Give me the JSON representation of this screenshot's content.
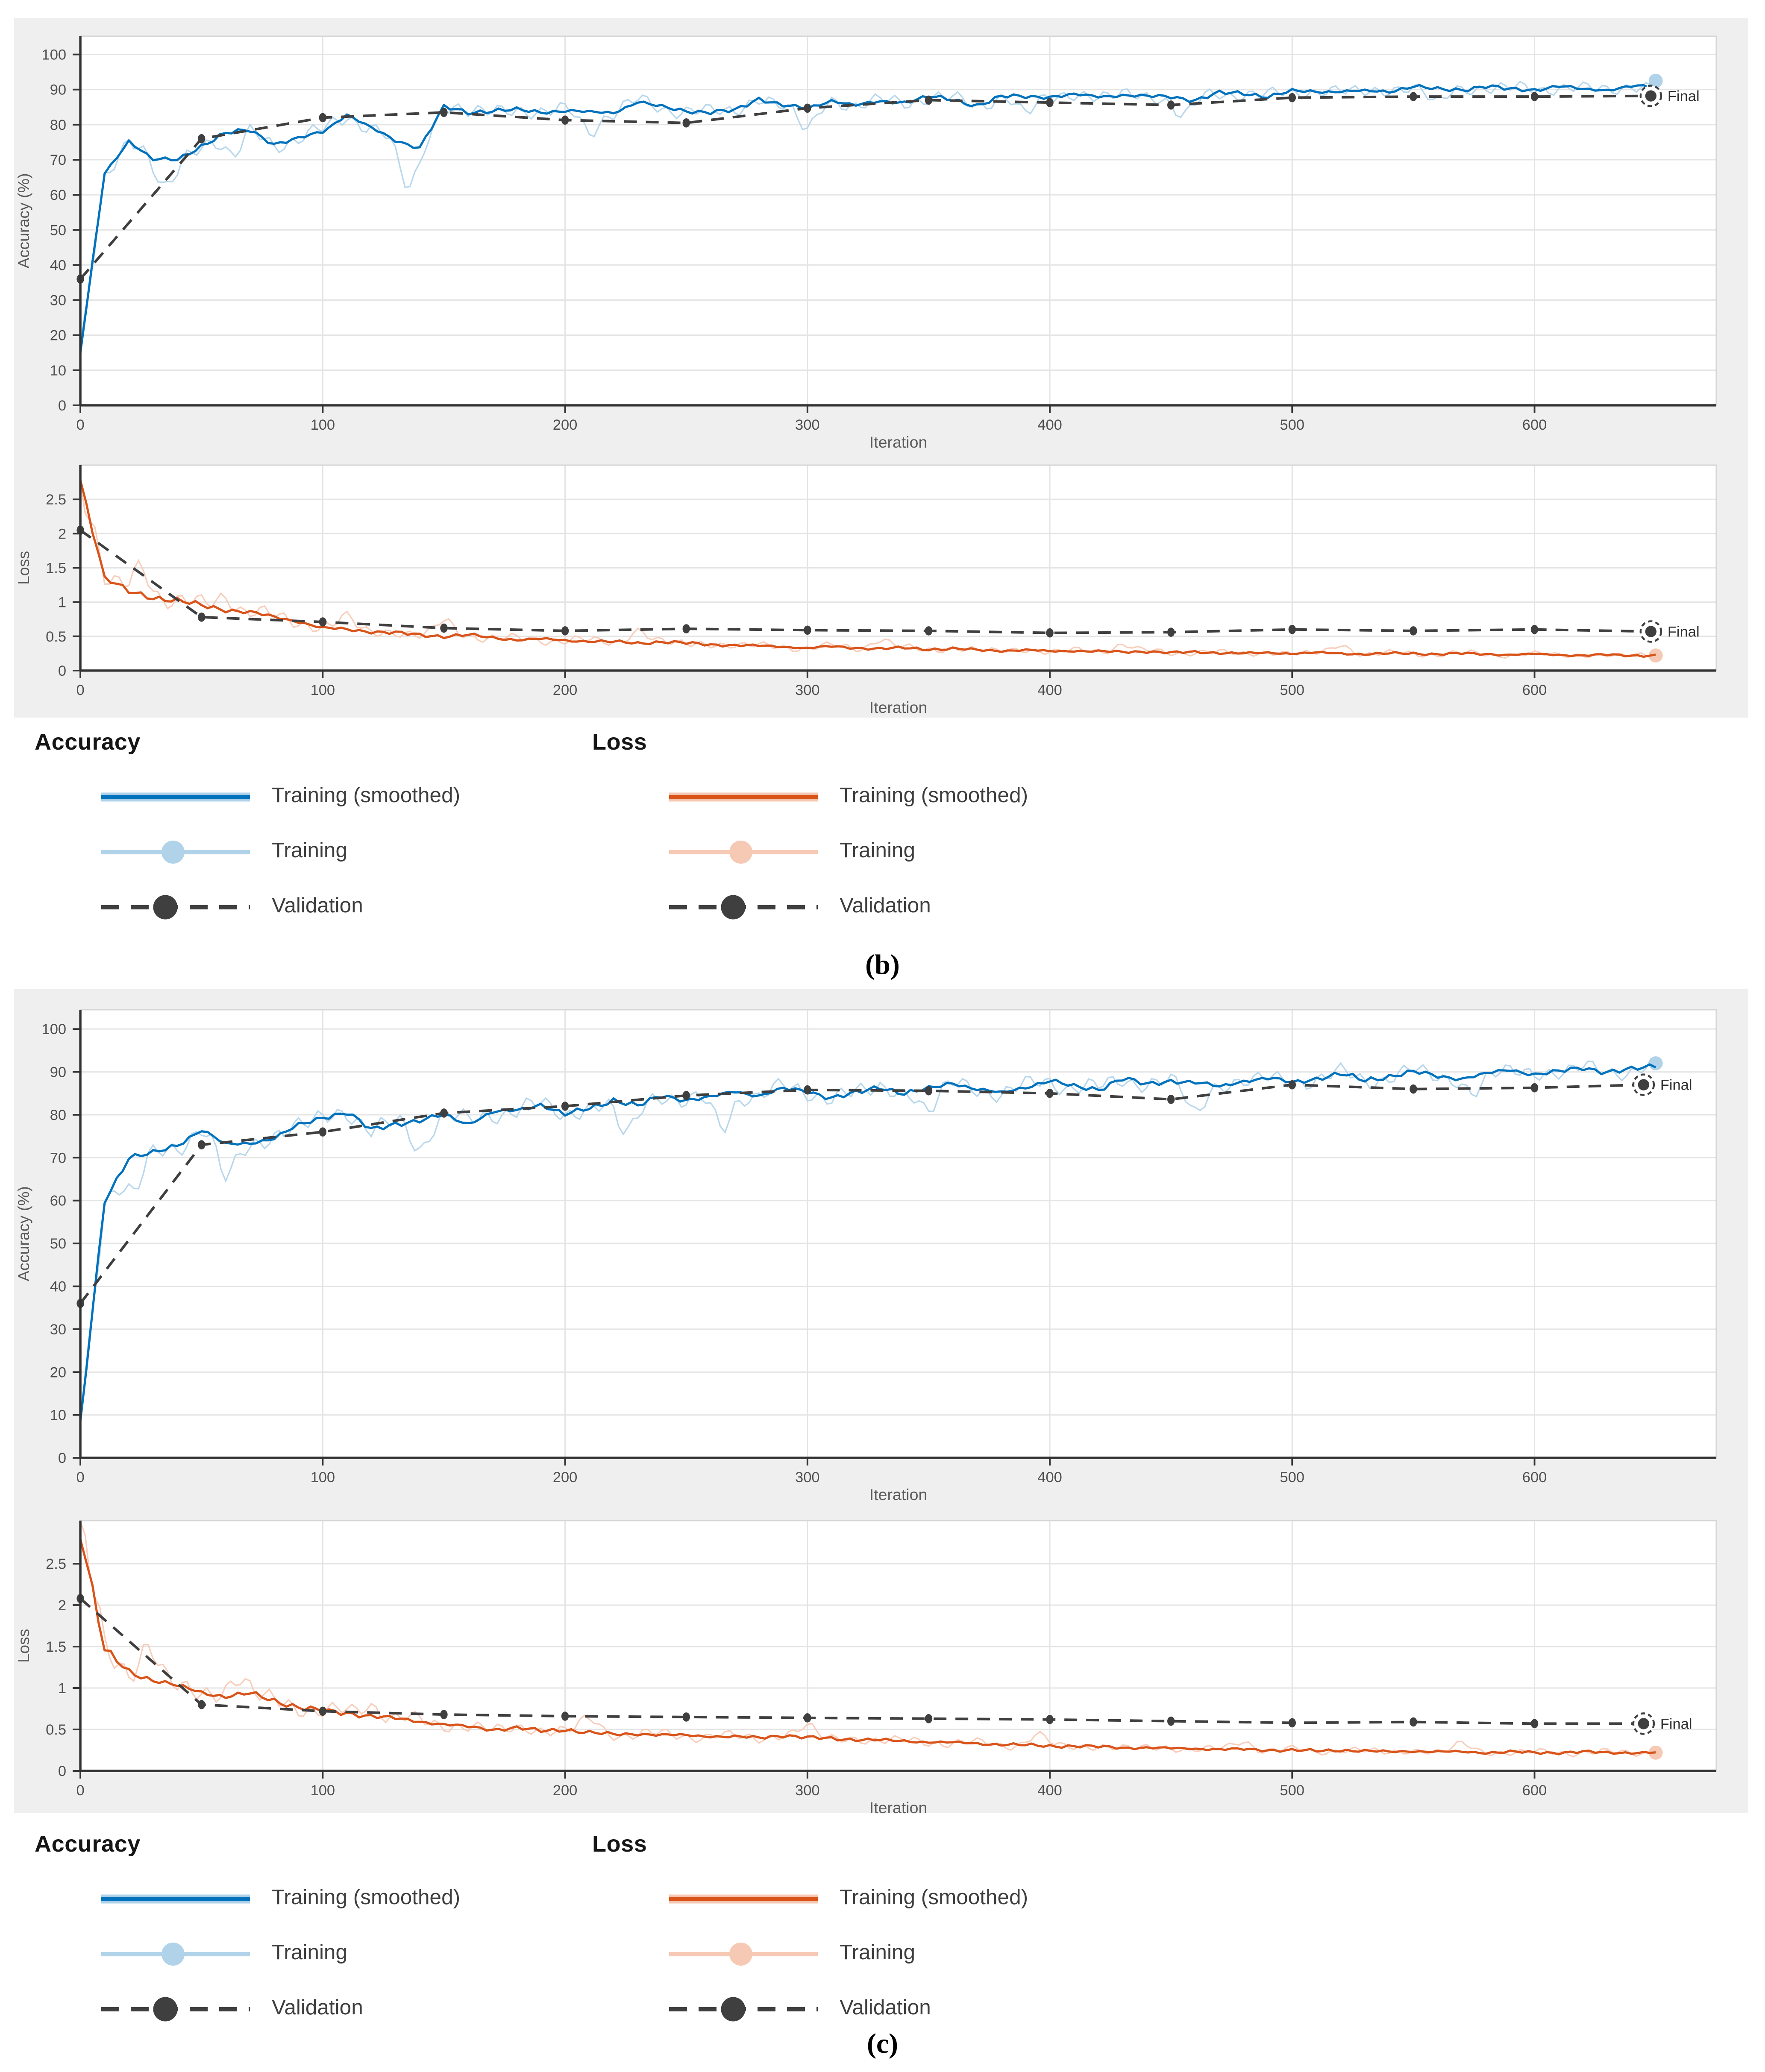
{
  "figure": {
    "background": "#ffffff",
    "panel_background": "#efefef",
    "final_label": "Final",
    "xlabel": "Iteration",
    "accuracy_ylabel": "Accuracy (%)",
    "loss_ylabel": "Loss"
  },
  "panels": [
    {
      "caption": "(b)",
      "legend": {
        "columns": [
          {
            "title": "Accuracy",
            "items": [
              {
                "label": "Training (smoothed)",
                "type": "smoothed",
                "color": "#0072bd",
                "halo": "#b0d3ea"
              },
              {
                "label": "Training",
                "type": "raw",
                "color": "#b0d3ea"
              },
              {
                "label": "Validation",
                "type": "validation",
                "color": "#3f3f3f"
              }
            ]
          },
          {
            "title": "Loss",
            "items": [
              {
                "label": "Training (smoothed)",
                "type": "smoothed",
                "color": "#d95319",
                "halo": "#f6c9b5"
              },
              {
                "label": "Training",
                "type": "raw",
                "color": "#f6c9b5"
              },
              {
                "label": "Validation",
                "type": "validation",
                "color": "#3f3f3f"
              }
            ]
          }
        ]
      }
    },
    {
      "caption": "(c)",
      "legend": {
        "columns": [
          {
            "title": "Accuracy",
            "items": [
              {
                "label": "Training (smoothed)",
                "type": "smoothed",
                "color": "#0072bd",
                "halo": "#b0d3ea"
              },
              {
                "label": "Training",
                "type": "raw",
                "color": "#b0d3ea"
              },
              {
                "label": "Validation",
                "type": "validation",
                "color": "#3f3f3f"
              }
            ]
          },
          {
            "title": "Loss",
            "items": [
              {
                "label": "Training (smoothed)",
                "type": "smoothed",
                "color": "#d95319",
                "halo": "#f6c9b5"
              },
              {
                "label": "Training",
                "type": "raw",
                "color": "#f6c9b5"
              },
              {
                "label": "Validation",
                "type": "validation",
                "color": "#3f3f3f"
              }
            ]
          }
        ]
      }
    }
  ],
  "chart_data": [
    {
      "panel": "b",
      "metric": "accuracy",
      "type": "line",
      "xlabel": "Iteration",
      "ylabel": "Accuracy (%)",
      "xlim": [
        0,
        675
      ],
      "ylim": [
        0,
        105.2
      ],
      "xticks": [
        0,
        100,
        200,
        300,
        400,
        500,
        600
      ],
      "yticks": [
        0,
        10,
        20,
        30,
        40,
        50,
        60,
        70,
        80,
        90,
        100
      ],
      "grid": true,
      "colors": {
        "smoothed": "#0072bd",
        "raw": "#b0d3ea",
        "validation": "#3f3f3f"
      },
      "series": {
        "smoothed": {
          "x_step": 10,
          "values": [
            15,
            66,
            75.5,
            70,
            70,
            74,
            77.5,
            78.5,
            74.5,
            76,
            78,
            83,
            79,
            75.5,
            73.5,
            85,
            83.5,
            84,
            84.2,
            83.6,
            84,
            83.5,
            83.5,
            86.5,
            85,
            84,
            83.5,
            84,
            87.5,
            85.5,
            84.5,
            87,
            85.5,
            86.5,
            86.5,
            88,
            87,
            85.5,
            88,
            88,
            88,
            88.5,
            88,
            88.5,
            88,
            88,
            87,
            89,
            89,
            88,
            89.5,
            89.5,
            89.5,
            89.5,
            89.5,
            91,
            90,
            90,
            91,
            90,
            90,
            91,
            90,
            90,
            91,
            90.5
          ]
        },
        "raw": {
          "derived_from": "smoothed",
          "amp": {
            "base": 3.2,
            "x_slope": -0.0012,
            "value_factor": 0
          },
          "dips": [
            [
              35,
              -8
            ],
            [
              63,
              -7
            ],
            [
              135,
              -12
            ],
            [
              210,
              -5
            ],
            [
              300,
              -6
            ],
            [
              390,
              -5
            ],
            [
              455,
              -5
            ],
            [
              560,
              -4
            ]
          ]
        },
        "validation": {
          "x": [
            0,
            50,
            100,
            150,
            200,
            250,
            300,
            350,
            400,
            450,
            500,
            550,
            600,
            648
          ],
          "y": [
            36,
            76,
            82,
            83.5,
            81.3,
            80.5,
            84.7,
            87,
            86.3,
            85.6,
            87.7,
            88,
            88,
            88.2
          ]
        },
        "final": {
          "x": 648,
          "y": 88.2,
          "label": "Final"
        },
        "raw_end_marker": {
          "x": 650,
          "y": 92.5
        }
      }
    },
    {
      "panel": "b",
      "metric": "loss",
      "type": "line",
      "xlabel": "Iteration",
      "ylabel": "Loss",
      "xlim": [
        0,
        675
      ],
      "ylim": [
        0,
        3.0
      ],
      "xticks": [
        0,
        100,
        200,
        300,
        400,
        500,
        600
      ],
      "yticks": [
        0,
        0.5,
        1,
        1.5,
        2,
        2.5
      ],
      "grid": true,
      "colors": {
        "smoothed": "#d95319",
        "raw": "#f6c9b5",
        "validation": "#3f3f3f"
      },
      "series": {
        "smoothed": {
          "x_step": 10,
          "values": [
            2.8,
            1.35,
            1.15,
            1.07,
            1.02,
            0.95,
            0.89,
            0.85,
            0.78,
            0.72,
            0.62,
            0.6,
            0.57,
            0.55,
            0.52,
            0.5,
            0.52,
            0.48,
            0.45,
            0.46,
            0.44,
            0.43,
            0.42,
            0.4,
            0.42,
            0.4,
            0.38,
            0.37,
            0.36,
            0.35,
            0.33,
            0.35,
            0.33,
            0.32,
            0.33,
            0.31,
            0.32,
            0.3,
            0.29,
            0.3,
            0.28,
            0.29,
            0.28,
            0.27,
            0.28,
            0.26,
            0.27,
            0.26,
            0.25,
            0.26,
            0.25,
            0.26,
            0.25,
            0.24,
            0.25,
            0.25,
            0.24,
            0.25,
            0.24,
            0.23,
            0.24,
            0.23,
            0.22,
            0.23,
            0.22,
            0.22
          ]
        },
        "raw": {
          "derived_from": "smoothed",
          "amp": {
            "base": 0.02,
            "x_slope": 0,
            "value_factor": 0.16
          },
          "dips": [
            [
              25,
              0.4
            ],
            [
              60,
              0.22
            ],
            [
              110,
              0.18
            ],
            [
              150,
              0.22
            ],
            [
              230,
              0.18
            ],
            [
              330,
              0.14
            ],
            [
              430,
              0.12
            ],
            [
              520,
              0.12
            ]
          ]
        },
        "validation": {
          "x": [
            0,
            50,
            100,
            150,
            200,
            250,
            300,
            350,
            400,
            450,
            500,
            550,
            600,
            648
          ],
          "y": [
            2.05,
            0.78,
            0.71,
            0.62,
            0.58,
            0.61,
            0.59,
            0.58,
            0.55,
            0.56,
            0.6,
            0.58,
            0.6,
            0.57
          ]
        },
        "final": {
          "x": 648,
          "y": 0.57,
          "label": "Final"
        },
        "raw_end_marker": {
          "x": 650,
          "y": 0.22
        }
      }
    },
    {
      "panel": "c",
      "metric": "accuracy",
      "type": "line",
      "xlabel": "Iteration",
      "ylabel": "Accuracy (%)",
      "xlim": [
        0,
        675
      ],
      "ylim": [
        0,
        104.5
      ],
      "xticks": [
        0,
        100,
        200,
        300,
        400,
        500,
        600
      ],
      "yticks": [
        0,
        10,
        20,
        30,
        40,
        50,
        60,
        70,
        80,
        90,
        100
      ],
      "grid": true,
      "colors": {
        "smoothed": "#0072bd",
        "raw": "#b0d3ea",
        "validation": "#3f3f3f"
      },
      "series": {
        "smoothed": {
          "x_step": 10,
          "values": [
            8,
            60,
            70,
            71,
            73,
            76.5,
            73,
            73.5,
            74.5,
            77.5,
            79.5,
            80.5,
            76.5,
            78,
            78.5,
            80,
            78,
            80.5,
            81,
            82.5,
            80,
            81.5,
            83.5,
            82,
            84.5,
            83.5,
            84,
            85.5,
            84.5,
            86,
            85.5,
            84,
            85,
            86.5,
            85,
            86,
            87.5,
            86,
            85,
            86.5,
            88,
            86.5,
            86,
            88.5,
            87,
            88,
            87.5,
            86.5,
            88,
            88.5,
            87.5,
            88.5,
            89.5,
            88,
            89,
            90,
            89,
            88.5,
            89.5,
            90.5,
            89.5,
            90,
            91,
            90,
            90.5,
            91.5
          ]
        },
        "raw": {
          "derived_from": "smoothed",
          "amp": {
            "base": 3.2,
            "x_slope": -0.0012,
            "value_factor": 0
          },
          "dips": [
            [
              22,
              -9
            ],
            [
              60,
              -8
            ],
            [
              140,
              -6
            ],
            [
              225,
              -7
            ],
            [
              265,
              -8
            ],
            [
              350,
              -5
            ],
            [
              460,
              -7
            ],
            [
              575,
              -4
            ]
          ]
        },
        "validation": {
          "x": [
            0,
            50,
            100,
            150,
            200,
            250,
            300,
            350,
            400,
            450,
            500,
            550,
            600,
            645
          ],
          "y": [
            36,
            73,
            76,
            80.4,
            82,
            84.5,
            85.8,
            85.6,
            85,
            83.6,
            87,
            86,
            86.3,
            87
          ]
        },
        "final": {
          "x": 645,
          "y": 87,
          "label": "Final"
        },
        "raw_end_marker": {
          "x": 650,
          "y": 92
        }
      }
    },
    {
      "panel": "c",
      "metric": "loss",
      "type": "line",
      "xlabel": "Iteration",
      "ylabel": "Loss",
      "xlim": [
        0,
        675
      ],
      "ylim": [
        0,
        3.02
      ],
      "xticks": [
        0,
        100,
        200,
        300,
        400,
        500,
        600
      ],
      "yticks": [
        0,
        0.5,
        1,
        1.5,
        2,
        2.5
      ],
      "grid": true,
      "colors": {
        "smoothed": "#d95319",
        "raw": "#f6c9b5",
        "validation": "#3f3f3f"
      },
      "series": {
        "smoothed": {
          "x_step": 10,
          "values": [
            2.9,
            1.45,
            1.2,
            1.1,
            1.02,
            0.95,
            0.9,
            0.93,
            0.85,
            0.77,
            0.72,
            0.7,
            0.66,
            0.63,
            0.6,
            0.56,
            0.53,
            0.5,
            0.52,
            0.48,
            0.5,
            0.46,
            0.44,
            0.45,
            0.43,
            0.43,
            0.42,
            0.41,
            0.4,
            0.43,
            0.4,
            0.39,
            0.38,
            0.37,
            0.36,
            0.35,
            0.34,
            0.33,
            0.32,
            0.31,
            0.3,
            0.3,
            0.29,
            0.28,
            0.28,
            0.27,
            0.27,
            0.26,
            0.26,
            0.25,
            0.25,
            0.24,
            0.25,
            0.24,
            0.23,
            0.24,
            0.23,
            0.23,
            0.22,
            0.23,
            0.22,
            0.22,
            0.23,
            0.22,
            0.22,
            0.22
          ]
        },
        "raw": {
          "derived_from": "smoothed",
          "amp": {
            "base": 0.02,
            "x_slope": 0,
            "value_factor": 0.16
          },
          "dips": [
            [
              28,
              0.38
            ],
            [
              65,
              0.2
            ],
            [
              120,
              0.16
            ],
            [
              210,
              0.16
            ],
            [
              300,
              0.14
            ],
            [
              395,
              0.12
            ],
            [
              480,
              0.1
            ],
            [
              570,
              0.1
            ]
          ]
        },
        "validation": {
          "x": [
            0,
            50,
            100,
            150,
            200,
            250,
            300,
            350,
            400,
            450,
            500,
            550,
            600,
            645
          ],
          "y": [
            2.08,
            0.8,
            0.72,
            0.68,
            0.66,
            0.65,
            0.64,
            0.63,
            0.62,
            0.6,
            0.58,
            0.59,
            0.57,
            0.57
          ]
        },
        "final": {
          "x": 645,
          "y": 0.57,
          "label": "Final"
        },
        "raw_end_marker": {
          "x": 650,
          "y": 0.22
        }
      }
    }
  ]
}
